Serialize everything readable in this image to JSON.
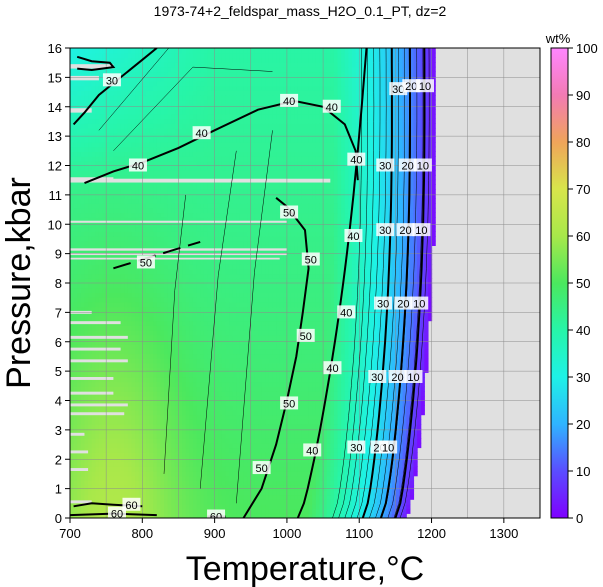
{
  "chart_data": {
    "type": "heatmap",
    "title": "1973-74+2_feldspar_mass_H2O_0.1_PT, dz=2",
    "xlabel": "Temperature,°C",
    "ylabel": "Pressure,kbar",
    "xlim": [
      700,
      1350
    ],
    "ylim": [
      0,
      16
    ],
    "x_ticks": [
      700,
      800,
      900,
      1000,
      1100,
      1200,
      1300
    ],
    "y_ticks": [
      0,
      1,
      2,
      3,
      4,
      5,
      6,
      7,
      8,
      9,
      10,
      11,
      12,
      13,
      14,
      15,
      16
    ],
    "grid": true,
    "colorbar": {
      "label": "wt%",
      "range": [
        0,
        100
      ],
      "ticks": [
        0,
        10,
        20,
        30,
        40,
        50,
        60,
        70,
        80,
        90,
        100
      ]
    },
    "no_data_color": "#e0e0e0",
    "contour_levels": [
      10,
      20,
      30,
      40,
      50,
      60
    ],
    "contour_labels": [
      {
        "text": "60",
        "x": 785,
        "y": 0.45
      },
      {
        "text": "60",
        "x": 765,
        "y": 0.15
      },
      {
        "text": "60",
        "x": 902,
        "y": 0.05
      },
      {
        "text": "50",
        "x": 965,
        "y": 1.7
      },
      {
        "text": "50",
        "x": 1003,
        "y": 3.9
      },
      {
        "text": "50",
        "x": 1026,
        "y": 6.2
      },
      {
        "text": "50",
        "x": 1033,
        "y": 8.8
      },
      {
        "text": "50",
        "x": 1003,
        "y": 10.4
      },
      {
        "text": "50",
        "x": 805,
        "y": 8.7
      },
      {
        "text": "40",
        "x": 1035,
        "y": 2.3
      },
      {
        "text": "40",
        "x": 1063,
        "y": 5.1
      },
      {
        "text": "40",
        "x": 1082,
        "y": 7.0
      },
      {
        "text": "40",
        "x": 1092,
        "y": 9.6
      },
      {
        "text": "40",
        "x": 1096,
        "y": 12.2
      },
      {
        "text": "40",
        "x": 1062,
        "y": 14.0
      },
      {
        "text": "40",
        "x": 1003,
        "y": 14.2
      },
      {
        "text": "40",
        "x": 882,
        "y": 13.1
      },
      {
        "text": "40",
        "x": 794,
        "y": 12.0
      },
      {
        "text": "30",
        "x": 1096,
        "y": 2.4
      },
      {
        "text": "30",
        "x": 1125,
        "y": 4.8
      },
      {
        "text": "30",
        "x": 1133,
        "y": 7.3
      },
      {
        "text": "30",
        "x": 1136,
        "y": 9.8
      },
      {
        "text": "30",
        "x": 1136,
        "y": 12.0
      },
      {
        "text": "30",
        "x": 1154,
        "y": 14.6
      },
      {
        "text": "30",
        "x": 758,
        "y": 14.9
      },
      {
        "text": "20",
        "x": 1128,
        "y": 2.4
      },
      {
        "text": "20",
        "x": 1153,
        "y": 4.8
      },
      {
        "text": "20",
        "x": 1161,
        "y": 7.3
      },
      {
        "text": "20",
        "x": 1164,
        "y": 9.8
      },
      {
        "text": "20",
        "x": 1167,
        "y": 12.0
      },
      {
        "text": "20",
        "x": 1172,
        "y": 14.7
      },
      {
        "text": "10",
        "x": 1140,
        "y": 2.4
      },
      {
        "text": "10",
        "x": 1175,
        "y": 4.8
      },
      {
        "text": "10",
        "x": 1183,
        "y": 7.3
      },
      {
        "text": "10",
        "x": 1186,
        "y": 9.8
      },
      {
        "text": "10",
        "x": 1188,
        "y": 12.0
      },
      {
        "text": "10",
        "x": 1191,
        "y": 14.7
      }
    ]
  }
}
